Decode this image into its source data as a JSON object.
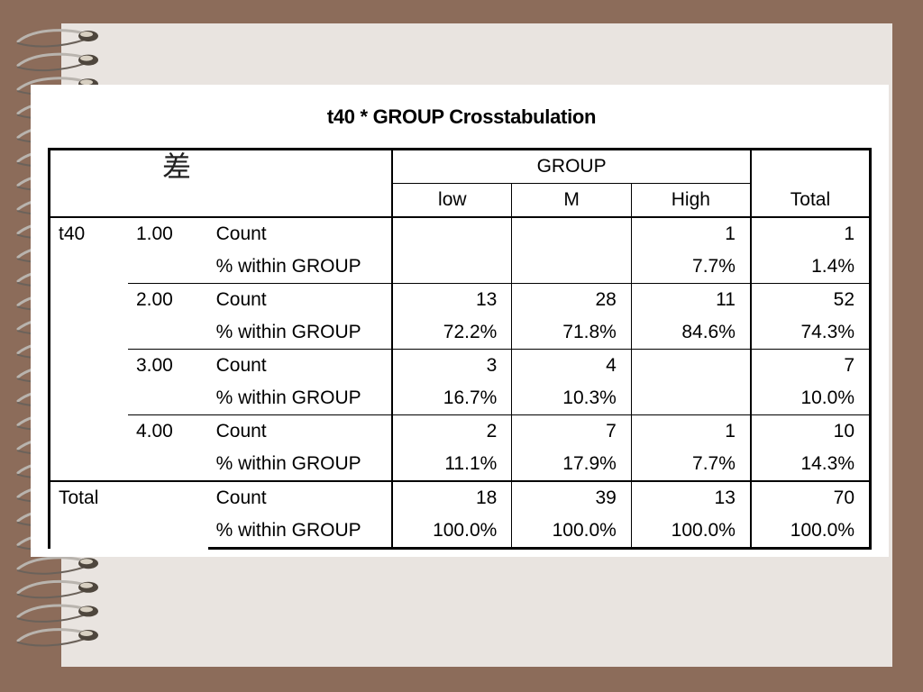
{
  "title": "t40 * GROUP Crosstabulation",
  "corner_label": "差",
  "group_header": "GROUP",
  "columns": [
    "low",
    "M",
    "High"
  ],
  "total_header": "Total",
  "row_var": "t40",
  "count_label": "Count",
  "pct_label": "% within GROUP",
  "rows": [
    {
      "level": "1.00",
      "count": [
        "",
        "",
        "1",
        "1"
      ],
      "pct": [
        "",
        "",
        "7.7%",
        "1.4%"
      ]
    },
    {
      "level": "2.00",
      "count": [
        "13",
        "28",
        "11",
        "52"
      ],
      "pct": [
        "72.2%",
        "71.8%",
        "84.6%",
        "74.3%"
      ]
    },
    {
      "level": "3.00",
      "count": [
        "3",
        "4",
        "",
        "7"
      ],
      "pct": [
        "16.7%",
        "10.3%",
        "",
        "10.0%"
      ]
    },
    {
      "level": "4.00",
      "count": [
        "2",
        "7",
        "1",
        "10"
      ],
      "pct": [
        "11.1%",
        "17.9%",
        "7.7%",
        "14.3%"
      ]
    }
  ],
  "total_row": {
    "label": "Total",
    "count": [
      "18",
      "39",
      "13",
      "70"
    ],
    "pct": [
      "100.0%",
      "100.0%",
      "100.0%",
      "100.0%"
    ]
  },
  "colors": {
    "background": "#8c6c5a",
    "page": "#e9e4e0",
    "slide": "#ffffff"
  }
}
